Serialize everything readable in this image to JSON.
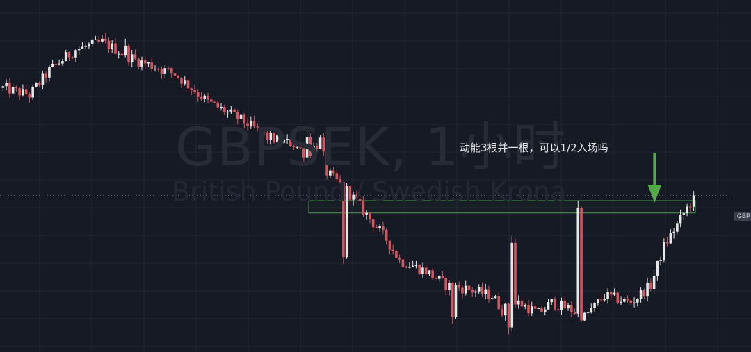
{
  "watermark": {
    "symbol": "GBPSEK, 1小时",
    "description": "British Pound / Swedish Krona"
  },
  "annotation": "动能3根并一根，可以1/2入场吗",
  "price_axis_tag": "GBP",
  "colors": {
    "background": "#161a25",
    "grid": "#222633",
    "candle_up": "#e6e6e6",
    "candle_down": "#d4565f",
    "zone_border": "#4f9a52",
    "arrow": "#55a84a",
    "price_line": "#6b7080"
  },
  "chart_data": {
    "type": "candlestick",
    "timeframe": "1H",
    "grid": true,
    "y_range": [
      0,
      100
    ],
    "candle_count": 210,
    "path_anchors": [
      [
        0,
        75
      ],
      [
        8,
        73
      ],
      [
        14,
        80
      ],
      [
        22,
        86
      ],
      [
        30,
        88
      ],
      [
        40,
        83
      ],
      [
        52,
        79
      ],
      [
        62,
        71
      ],
      [
        72,
        66
      ],
      [
        80,
        61
      ],
      [
        88,
        59
      ],
      [
        92,
        56
      ],
      [
        96,
        60
      ],
      [
        98,
        51
      ],
      [
        104,
        46
      ],
      [
        110,
        39
      ],
      [
        116,
        32
      ],
      [
        120,
        26
      ],
      [
        128,
        23
      ],
      [
        134,
        19
      ],
      [
        140,
        18
      ],
      [
        148,
        16
      ],
      [
        151,
        12
      ],
      [
        156,
        14
      ],
      [
        162,
        11
      ],
      [
        166,
        14
      ],
      [
        172,
        12
      ],
      [
        176,
        10
      ],
      [
        182,
        16
      ],
      [
        190,
        14
      ],
      [
        196,
        19
      ],
      [
        200,
        30
      ],
      [
        209,
        44
      ]
    ],
    "events": [
      {
        "index": 37,
        "type": "spike-up",
        "value": 89
      },
      {
        "index": 92,
        "type": "spike-up",
        "value": 63
      },
      {
        "index": 103,
        "type": "spike-down",
        "value": 25
      },
      {
        "index": 111,
        "type": "spike-up",
        "value": 35
      },
      {
        "index": 136,
        "type": "spike-down",
        "value": 8
      },
      {
        "index": 153,
        "type": "spike-down",
        "value": 5
      },
      {
        "index": 154,
        "type": "spike-up",
        "value": 33
      },
      {
        "index": 174,
        "type": "spike-up",
        "value": 43
      },
      {
        "index": 209,
        "type": "spike-up",
        "value": 45
      }
    ],
    "zone": {
      "start_index": 93,
      "end_index": 210,
      "low": 39.5,
      "high": 43
    },
    "current_price_level": 44.5,
    "arrow_at_index": 198
  }
}
